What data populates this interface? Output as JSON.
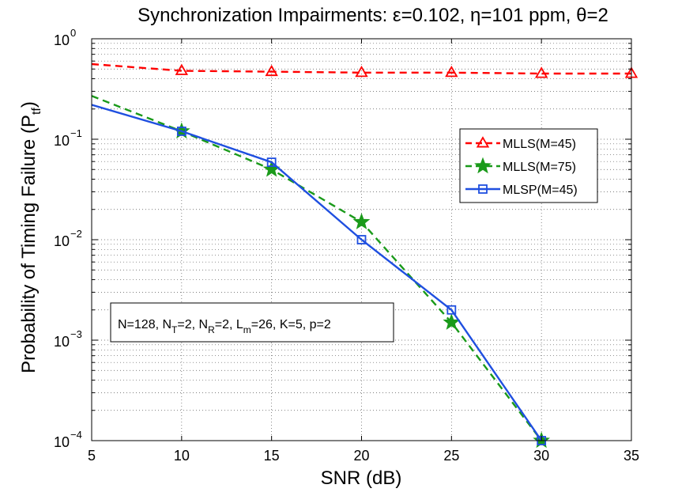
{
  "chart_data": {
    "type": "line",
    "title": "Synchronization Impairments: ε=0.102, η=101 ppm, θ=2",
    "xlabel": "SNR (dB)",
    "ylabel": "Probability of Timing Failure (P",
    "ylabel_sub": "tf",
    "ylabel_close": ")",
    "xlim": [
      5,
      35
    ],
    "ylim": [
      0.0001,
      1
    ],
    "yscale": "log",
    "grid": true,
    "x_ticks": [
      "5",
      "10",
      "15",
      "20",
      "25",
      "30",
      "35"
    ],
    "y_ticks": [
      {
        "base": "10",
        "exp": "−4",
        "value": 0.0001
      },
      {
        "base": "10",
        "exp": "−3",
        "value": 0.001
      },
      {
        "base": "10",
        "exp": "−2",
        "value": 0.01
      },
      {
        "base": "10",
        "exp": "−1",
        "value": 0.1
      },
      {
        "base": "10",
        "exp": "0",
        "value": 1
      }
    ],
    "legend_position": "center-right",
    "series": [
      {
        "name": "MLLS(M=45)",
        "color": "#ff0000",
        "dash": "dashed",
        "marker": "triangle",
        "x": [
          5,
          10,
          15,
          20,
          25,
          30,
          35
        ],
        "y": [
          0.56,
          0.48,
          0.47,
          0.46,
          0.46,
          0.45,
          0.45
        ],
        "marker_x": [
          10,
          15,
          20,
          25,
          30,
          35
        ]
      },
      {
        "name": "MLLS(M=75)",
        "color": "#1a9a1a",
        "dash": "dashed",
        "marker": "star",
        "x": [
          5,
          10,
          15,
          20,
          25,
          30
        ],
        "y": [
          0.27,
          0.12,
          0.05,
          0.015,
          0.0015,
          0.0001
        ],
        "marker_x": [
          10,
          15,
          20,
          25,
          30
        ]
      },
      {
        "name": "MLSP(M=45)",
        "color": "#1f4fe0",
        "dash": "solid",
        "marker": "square",
        "x": [
          5,
          10,
          15,
          20,
          25,
          30
        ],
        "y": [
          0.22,
          0.12,
          0.059,
          0.01,
          0.002,
          0.0001
        ],
        "marker_x": [
          10,
          15,
          20,
          25,
          30
        ]
      }
    ],
    "annotation": {
      "parts": [
        {
          "t": "N=128, N"
        },
        {
          "t": "T",
          "sub": true
        },
        {
          "t": "=2, N"
        },
        {
          "t": "R",
          "sub": true
        },
        {
          "t": "=2, L"
        },
        {
          "t": "m",
          "sub": true
        },
        {
          "t": "=26, K=5, p=2"
        }
      ]
    }
  }
}
